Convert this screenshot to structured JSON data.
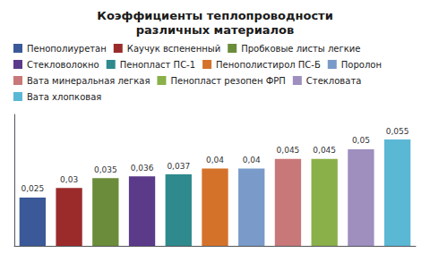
{
  "chart_data": {
    "type": "bar",
    "title": "Коэффициенты теплопроводности\nразличных материалов",
    "categories": [
      "Пенополиуретан",
      "Каучук вспененный",
      "Пробковые листы легкие",
      "Стекловолокно",
      "Пенопласт ПС-1",
      "Пенополистирол ПС-Б",
      "Поролон",
      "Вата минеральная легкая",
      "Пенопласт резопен ФРП",
      "Стекловата",
      "Вата хлопковая"
    ],
    "values": [
      0.025,
      0.03,
      0.035,
      0.036,
      0.037,
      0.04,
      0.04,
      0.045,
      0.045,
      0.05,
      0.055
    ],
    "value_labels": [
      "0,025",
      "0,03",
      "0,035",
      "0,036",
      "0,037",
      "0,04",
      "0,04",
      "0,045",
      "0,045",
      "0,05",
      "0,055"
    ],
    "colors": [
      "#3B5998",
      "#9B2B2B",
      "#6B8C3A",
      "#5B3A8A",
      "#2E8A8C",
      "#D4722A",
      "#7A9BC9",
      "#C87878",
      "#8AB04A",
      "#9E8FBF",
      "#5BB8D5"
    ],
    "ylim": [
      0,
      0.068
    ],
    "data_labels": true,
    "tick_labels": false,
    "grid": false,
    "legend": "top"
  }
}
